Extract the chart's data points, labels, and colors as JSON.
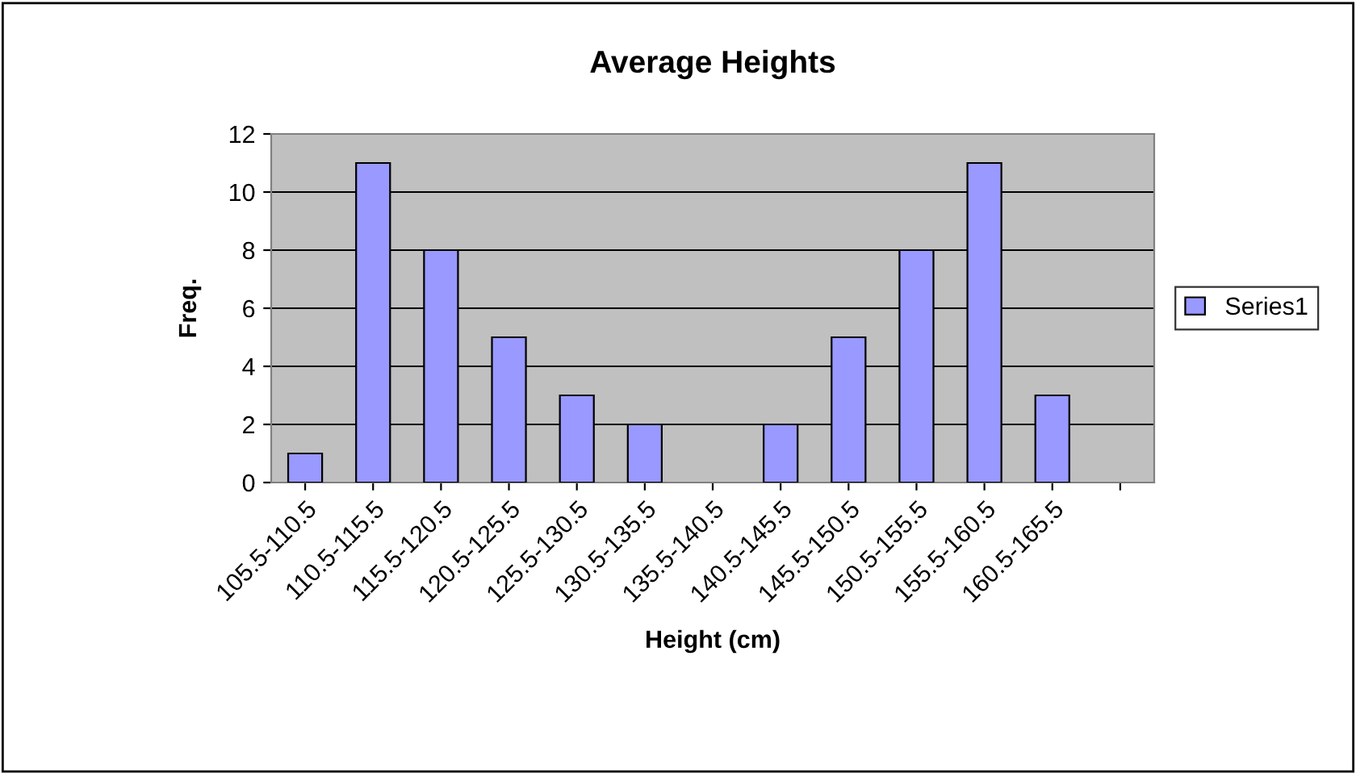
{
  "chart_data": {
    "type": "bar",
    "title": "Average Heights",
    "xlabel": "Height (cm)",
    "ylabel": "Freq.",
    "categories": [
      "105.5-110.5",
      "110.5-115.5",
      "115.5-120.5",
      "120.5-125.5",
      "125.5-130.5",
      "130.5-135.5",
      "135.5-140.5",
      "140.5-145.5",
      "145.5-150.5",
      "150.5-155.5",
      "155.5-160.5",
      "160.5-165.5",
      null
    ],
    "series": [
      {
        "name": "Series1",
        "color": "#9999ff",
        "values": [
          1,
          11,
          8,
          5,
          3,
          2,
          null,
          2,
          5,
          8,
          11,
          3,
          null
        ]
      }
    ],
    "ylim": [
      0,
      12
    ],
    "yticks": [
      0,
      2,
      4,
      6,
      8,
      10,
      12
    ],
    "grid": "y",
    "legend": "right"
  }
}
